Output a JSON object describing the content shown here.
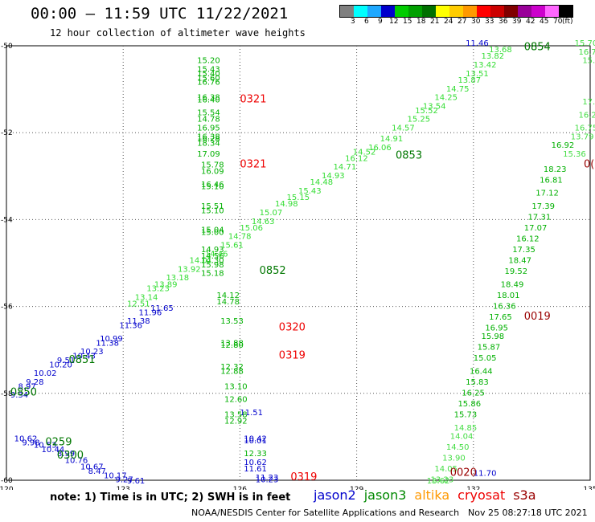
{
  "header": {
    "title": "00:00 – 11:59 UTC 11/22/2021",
    "subtitle": "12 hour collection of altimeter wave heights"
  },
  "legend": {
    "colors": [
      "#808080",
      "#00ffff",
      "#1ea8ff",
      "#0000cc",
      "#00cc00",
      "#00a000",
      "#007000",
      "#ffff00",
      "#ffcc00",
      "#ff9900",
      "#ff0000",
      "#cc0000",
      "#800000",
      "#990099",
      "#cc00cc",
      "#ff66ff",
      "#000000"
    ],
    "labels": [
      "3",
      "6",
      "9",
      "12",
      "15",
      "18",
      "21",
      "24",
      "27",
      "30",
      "33",
      "36",
      "39",
      "42",
      "45",
      "70",
      "(ft)"
    ]
  },
  "axes": {
    "lon_labels": [
      "120",
      "123",
      "126",
      "129",
      "132",
      "135"
    ],
    "lat_labels": [
      "-50",
      "-52",
      "-54",
      "-56",
      "-58",
      "-60"
    ]
  },
  "tracks": {
    "jason2_west": {
      "color": "#0000cc",
      "points": [
        {
          "lon": 123.7,
          "lat": -56.1,
          "v": "11.65"
        },
        {
          "lon": 123.4,
          "lat": -56.2,
          "v": "11.96"
        },
        {
          "lon": 123.1,
          "lat": -56.4,
          "v": "11.38"
        },
        {
          "lon": 122.9,
          "lat": -56.5,
          "v": "11.36"
        },
        {
          "lon": 122.4,
          "lat": -56.8,
          "v": "10.99"
        },
        {
          "lon": 122.3,
          "lat": -56.9,
          "v": "11.38"
        },
        {
          "lon": 121.9,
          "lat": -57.1,
          "v": "10.23"
        },
        {
          "lon": 121.7,
          "lat": -57.2,
          "v": "10.43"
        },
        {
          "lon": 121.3,
          "lat": -57.3,
          "v": "9.51"
        },
        {
          "lon": 121.1,
          "lat": -57.4,
          "v": "10.20"
        },
        {
          "lon": 120.7,
          "lat": -57.6,
          "v": "10.02"
        },
        {
          "lon": 120.5,
          "lat": -57.8,
          "v": "9.28"
        },
        {
          "lon": 120.3,
          "lat": -57.9,
          "v": "8.97"
        },
        {
          "lon": 120.1,
          "lat": -58.1,
          "v": "9.34"
        }
      ]
    },
    "jason2_sw": {
      "color": "#0000cc",
      "points": [
        {
          "lon": 120.2,
          "lat": -59.1,
          "v": "10.62"
        },
        {
          "lon": 120.4,
          "lat": -59.2,
          "v": "9.98"
        },
        {
          "lon": 120.7,
          "lat": -59.25,
          "v": "10.53"
        },
        {
          "lon": 120.9,
          "lat": -59.35,
          "v": "10.44"
        },
        {
          "lon": 121.3,
          "lat": -59.45,
          "v": "8.99"
        },
        {
          "lon": 121.5,
          "lat": -59.6,
          "v": "10.76"
        },
        {
          "lon": 121.9,
          "lat": -59.75,
          "v": "10.67"
        },
        {
          "lon": 122.1,
          "lat": -59.85,
          "v": "8.47"
        },
        {
          "lon": 122.5,
          "lat": -59.95,
          "v": "10.17"
        },
        {
          "lon": 122.8,
          "lat": -60.05,
          "v": "9.27"
        },
        {
          "lon": 123.1,
          "lat": -60.15,
          "v": "9.61"
        }
      ]
    },
    "jason2_mid": {
      "color": "#0000cc",
      "points": [
        {
          "lon": 126.0,
          "lat": -58.5,
          "v": "11.51"
        },
        {
          "lon": 126.1,
          "lat": -59.1,
          "v": "10.42"
        },
        {
          "lon": 126.1,
          "lat": -59.15,
          "v": "10.01"
        },
        {
          "lon": 126.1,
          "lat": -59.65,
          "v": "10.62"
        },
        {
          "lon": 126.1,
          "lat": -59.8,
          "v": "11.61"
        },
        {
          "lon": 126.4,
          "lat": -60.0,
          "v": "11.23"
        },
        {
          "lon": 126.4,
          "lat": -60.05,
          "v": "10.23"
        }
      ]
    },
    "jason2_ne": {
      "color": "#0000cc",
      "points": [
        {
          "lon": 132.0,
          "lat": -59.9,
          "v": "11.70"
        },
        {
          "lon": 131.8,
          "lat": -50.0,
          "v": "11.46"
        }
      ]
    },
    "jason3_col": {
      "color": "#00b000",
      "points": [
        {
          "lon": 124.9,
          "lat": -50.4,
          "v": "15.20"
        },
        {
          "lon": 124.9,
          "lat": -50.6,
          "v": "15.43"
        },
        {
          "lon": 124.9,
          "lat": -50.7,
          "v": "15.40"
        },
        {
          "lon": 124.9,
          "lat": -50.8,
          "v": "15.60"
        },
        {
          "lon": 124.9,
          "lat": -50.9,
          "v": "16.76"
        },
        {
          "lon": 124.9,
          "lat": -51.25,
          "v": "16.38"
        },
        {
          "lon": 124.9,
          "lat": -51.3,
          "v": "16.40"
        },
        {
          "lon": 124.9,
          "lat": -51.6,
          "v": "15.54"
        },
        {
          "lon": 124.9,
          "lat": -51.75,
          "v": "14.78"
        },
        {
          "lon": 124.9,
          "lat": -51.95,
          "v": "16.95"
        },
        {
          "lon": 124.9,
          "lat": -52.15,
          "v": "16.38"
        },
        {
          "lon": 124.9,
          "lat": -52.2,
          "v": "16.28"
        },
        {
          "lon": 124.9,
          "lat": -52.3,
          "v": "18.34"
        },
        {
          "lon": 124.9,
          "lat": -52.55,
          "v": "17.09"
        },
        {
          "lon": 125.0,
          "lat": -52.8,
          "v": "15.78"
        },
        {
          "lon": 125.0,
          "lat": -52.95,
          "v": "16.09"
        },
        {
          "lon": 125.0,
          "lat": -53.25,
          "v": "16.46"
        },
        {
          "lon": 125.0,
          "lat": -53.3,
          "v": "15.10"
        },
        {
          "lon": 125.0,
          "lat": -53.75,
          "v": "15.51"
        },
        {
          "lon": 125.0,
          "lat": -53.85,
          "v": "15.10"
        },
        {
          "lon": 125.0,
          "lat": -54.3,
          "v": "15.04"
        },
        {
          "lon": 125.0,
          "lat": -54.35,
          "v": "15.00"
        },
        {
          "lon": 125.0,
          "lat": -54.75,
          "v": "14.93"
        },
        {
          "lon": 125.0,
          "lat": -54.9,
          "v": "14.56"
        },
        {
          "lon": 125.0,
          "lat": -55.0,
          "v": "14.30"
        },
        {
          "lon": 125.0,
          "lat": -55.1,
          "v": "15.98"
        },
        {
          "lon": 125.0,
          "lat": -55.3,
          "v": "15.18"
        },
        {
          "lon": 125.4,
          "lat": -55.8,
          "v": "14.12"
        },
        {
          "lon": 125.4,
          "lat": -55.95,
          "v": "14.78"
        },
        {
          "lon": 125.5,
          "lat": -56.4,
          "v": "13.53"
        },
        {
          "lon": 125.5,
          "lat": -56.9,
          "v": "13.88"
        },
        {
          "lon": 125.5,
          "lat": -56.95,
          "v": "12.80"
        },
        {
          "lon": 125.5,
          "lat": -57.45,
          "v": "12.32"
        },
        {
          "lon": 125.5,
          "lat": -57.55,
          "v": "12.88"
        },
        {
          "lon": 125.6,
          "lat": -57.9,
          "v": "13.10"
        },
        {
          "lon": 125.6,
          "lat": -58.2,
          "v": "12.60"
        },
        {
          "lon": 125.6,
          "lat": -58.55,
          "v": "13.58"
        },
        {
          "lon": 125.6,
          "lat": -58.7,
          "v": "12.92"
        },
        {
          "lon": 126.1,
          "lat": -59.45,
          "v": "12.33"
        }
      ]
    },
    "jason3_diag": {
      "color": "#33dd33",
      "points": [
        {
          "lon": 123.1,
          "lat": -56.0,
          "v": "12.51"
        },
        {
          "lon": 123.3,
          "lat": -55.85,
          "v": "13.14"
        },
        {
          "lon": 123.6,
          "lat": -55.65,
          "v": "13.23"
        },
        {
          "lon": 123.8,
          "lat": -55.55,
          "v": "13.89"
        },
        {
          "lon": 124.1,
          "lat": -55.4,
          "v": "13.18"
        },
        {
          "lon": 124.4,
          "lat": -55.2,
          "v": "13.92"
        },
        {
          "lon": 124.7,
          "lat": -55.0,
          "v": "14.01"
        },
        {
          "lon": 125.1,
          "lat": -54.85,
          "v": "14.46"
        },
        {
          "lon": 125.5,
          "lat": -54.65,
          "v": "15.61"
        },
        {
          "lon": 125.7,
          "lat": -54.45,
          "v": "14.78"
        },
        {
          "lon": 126.0,
          "lat": -54.25,
          "v": "15.06"
        },
        {
          "lon": 126.3,
          "lat": -54.1,
          "v": "14.63"
        },
        {
          "lon": 126.5,
          "lat": -53.9,
          "v": "15.07"
        },
        {
          "lon": 126.9,
          "lat": -53.7,
          "v": "14.98"
        },
        {
          "lon": 127.2,
          "lat": -53.55,
          "v": "15.15"
        },
        {
          "lon": 127.5,
          "lat": -53.4,
          "v": "15.43"
        },
        {
          "lon": 127.8,
          "lat": -53.2,
          "v": "14.48"
        },
        {
          "lon": 128.1,
          "lat": -53.05,
          "v": "14.93"
        },
        {
          "lon": 128.4,
          "lat": -52.85,
          "v": "14.71"
        },
        {
          "lon": 128.7,
          "lat": -52.65,
          "v": "16.12"
        },
        {
          "lon": 128.9,
          "lat": -52.5,
          "v": "14.52"
        },
        {
          "lon": 129.3,
          "lat": -52.4,
          "v": "16.06"
        },
        {
          "lon": 129.6,
          "lat": -52.2,
          "v": "14.91"
        },
        {
          "lon": 129.9,
          "lat": -51.95,
          "v": "14.57"
        },
        {
          "lon": 130.3,
          "lat": -51.75,
          "v": "15.25"
        },
        {
          "lon": 130.5,
          "lat": -51.55,
          "v": "15.52"
        },
        {
          "lon": 130.7,
          "lat": -51.45,
          "v": "13.54"
        },
        {
          "lon": 131.0,
          "lat": -51.25,
          "v": "14.25"
        },
        {
          "lon": 131.3,
          "lat": -51.05,
          "v": "14.75"
        },
        {
          "lon": 131.6,
          "lat": -50.85,
          "v": "13.87"
        },
        {
          "lon": 131.8,
          "lat": -50.7,
          "v": "13.51"
        },
        {
          "lon": 132.0,
          "lat": -50.5,
          "v": "13.42"
        },
        {
          "lon": 132.2,
          "lat": -50.3,
          "v": "13.82"
        },
        {
          "lon": 132.4,
          "lat": -50.15,
          "v": "13.68"
        }
      ]
    },
    "jason3_east": {
      "color": "#00b000",
      "points": [
        {
          "lon": 134.0,
          "lat": -52.35,
          "v": "16.92"
        },
        {
          "lon": 133.8,
          "lat": -52.9,
          "v": "18.23"
        },
        {
          "lon": 133.7,
          "lat": -53.15,
          "v": "16.81"
        },
        {
          "lon": 133.6,
          "lat": -53.45,
          "v": "17.12"
        },
        {
          "lon": 133.5,
          "lat": -53.75,
          "v": "17.39"
        },
        {
          "lon": 133.4,
          "lat": -54.0,
          "v": "17.31"
        },
        {
          "lon": 133.3,
          "lat": -54.25,
          "v": "17.07"
        },
        {
          "lon": 133.1,
          "lat": -54.5,
          "v": "16.12"
        },
        {
          "lon": 133.0,
          "lat": -54.75,
          "v": "17.35"
        },
        {
          "lon": 132.9,
          "lat": -55.0,
          "v": "18.47"
        },
        {
          "lon": 132.8,
          "lat": -55.25,
          "v": "19.52"
        },
        {
          "lon": 132.7,
          "lat": -55.55,
          "v": "18.49"
        },
        {
          "lon": 132.6,
          "lat": -55.8,
          "v": "18.01"
        },
        {
          "lon": 132.5,
          "lat": -56.05,
          "v": "16.36"
        },
        {
          "lon": 132.4,
          "lat": -56.3,
          "v": "17.65"
        },
        {
          "lon": 132.3,
          "lat": -56.55,
          "v": "16.95"
        },
        {
          "lon": 132.2,
          "lat": -56.75,
          "v": "15.98"
        },
        {
          "lon": 132.1,
          "lat": -57.0,
          "v": "15.87"
        },
        {
          "lon": 132.0,
          "lat": -57.25,
          "v": "15.05"
        },
        {
          "lon": 131.9,
          "lat": -57.55,
          "v": "16.44"
        },
        {
          "lon": 131.8,
          "lat": -57.8,
          "v": "15.83"
        },
        {
          "lon": 131.7,
          "lat": -58.05,
          "v": "16.25"
        },
        {
          "lon": 131.6,
          "lat": -58.3,
          "v": "15.86"
        },
        {
          "lon": 131.5,
          "lat": -58.55,
          "v": "15.73"
        }
      ]
    },
    "jason3_east_light": {
      "color": "#44dd44",
      "points": [
        {
          "lon": 134.6,
          "lat": -50.0,
          "v": "15.70"
        },
        {
          "lon": 134.7,
          "lat": -50.2,
          "v": "16.71"
        },
        {
          "lon": 134.8,
          "lat": -50.4,
          "v": "15.7"
        },
        {
          "lon": 134.8,
          "lat": -51.35,
          "v": "17.0"
        },
        {
          "lon": 134.7,
          "lat": -51.65,
          "v": "16.2"
        },
        {
          "lon": 134.6,
          "lat": -51.95,
          "v": "16.75"
        },
        {
          "lon": 134.5,
          "lat": -52.15,
          "v": "13.79"
        },
        {
          "lon": 134.3,
          "lat": -52.55,
          "v": "15.36"
        },
        {
          "lon": 131.5,
          "lat": -58.85,
          "v": "14.85"
        },
        {
          "lon": 131.4,
          "lat": -59.05,
          "v": "14.04"
        },
        {
          "lon": 131.3,
          "lat": -59.3,
          "v": "14.50"
        },
        {
          "lon": 131.2,
          "lat": -59.55,
          "v": "13.90"
        },
        {
          "lon": 131.0,
          "lat": -59.8,
          "v": "14.05"
        },
        {
          "lon": 130.9,
          "lat": -60.05,
          "v": "13.23"
        },
        {
          "lon": 130.8,
          "lat": -60.35,
          "v": "13.62"
        }
      ]
    },
    "cryosat": {
      "color": "#ee0000",
      "points": [
        {
          "lon": 126.0,
          "lat": -51.3,
          "v": "0321"
        },
        {
          "lon": 126.0,
          "lat": -52.8,
          "v": "0321"
        },
        {
          "lon": 127.0,
          "lat": -56.55,
          "v": "0320"
        },
        {
          "lon": 127.0,
          "lat": -57.2,
          "v": "0319"
        },
        {
          "lon": 127.3,
          "lat": -60.0,
          "v": "0319"
        }
      ]
    },
    "s3a": {
      "color": "#990000",
      "points": [
        {
          "lon": 133.3,
          "lat": -56.3,
          "v": "0019"
        },
        {
          "lon": 131.4,
          "lat": -59.9,
          "v": "0020"
        },
        {
          "lon": 135.0,
          "lat": -52.8,
          "v": "0("
        }
      ]
    }
  },
  "pass_times": {
    "color": "#007700",
    "items": [
      {
        "lon": 133.3,
        "lat": -50.1,
        "v": "0854"
      },
      {
        "lon": 130.0,
        "lat": -52.6,
        "v": "0853"
      },
      {
        "lon": 126.5,
        "lat": -55.25,
        "v": "0852"
      },
      {
        "lon": 121.6,
        "lat": -57.3,
        "v": "0851"
      },
      {
        "lon": 120.1,
        "lat": -58.05,
        "v": "0850"
      },
      {
        "lon": 121.0,
        "lat": -59.2,
        "v": "0259"
      },
      {
        "lon": 121.3,
        "lat": -59.5,
        "v": "0300"
      }
    ]
  },
  "footer": {
    "note": "note:  1) Time is in UTC;  2) SWH is in feet",
    "satellites": [
      {
        "name": "jason2",
        "color": "#0000cc"
      },
      {
        "name": "jason3",
        "color": "#008800"
      },
      {
        "name": "altika",
        "color": "#ff9900"
      },
      {
        "name": "cryosat",
        "color": "#ee0000"
      },
      {
        "name": "s3a",
        "color": "#990000"
      }
    ],
    "credit": "NOAA/NESDIS Center for Satellite Applications and Research",
    "timestamp": "Nov 25 08:27:18 UTC 2021"
  }
}
